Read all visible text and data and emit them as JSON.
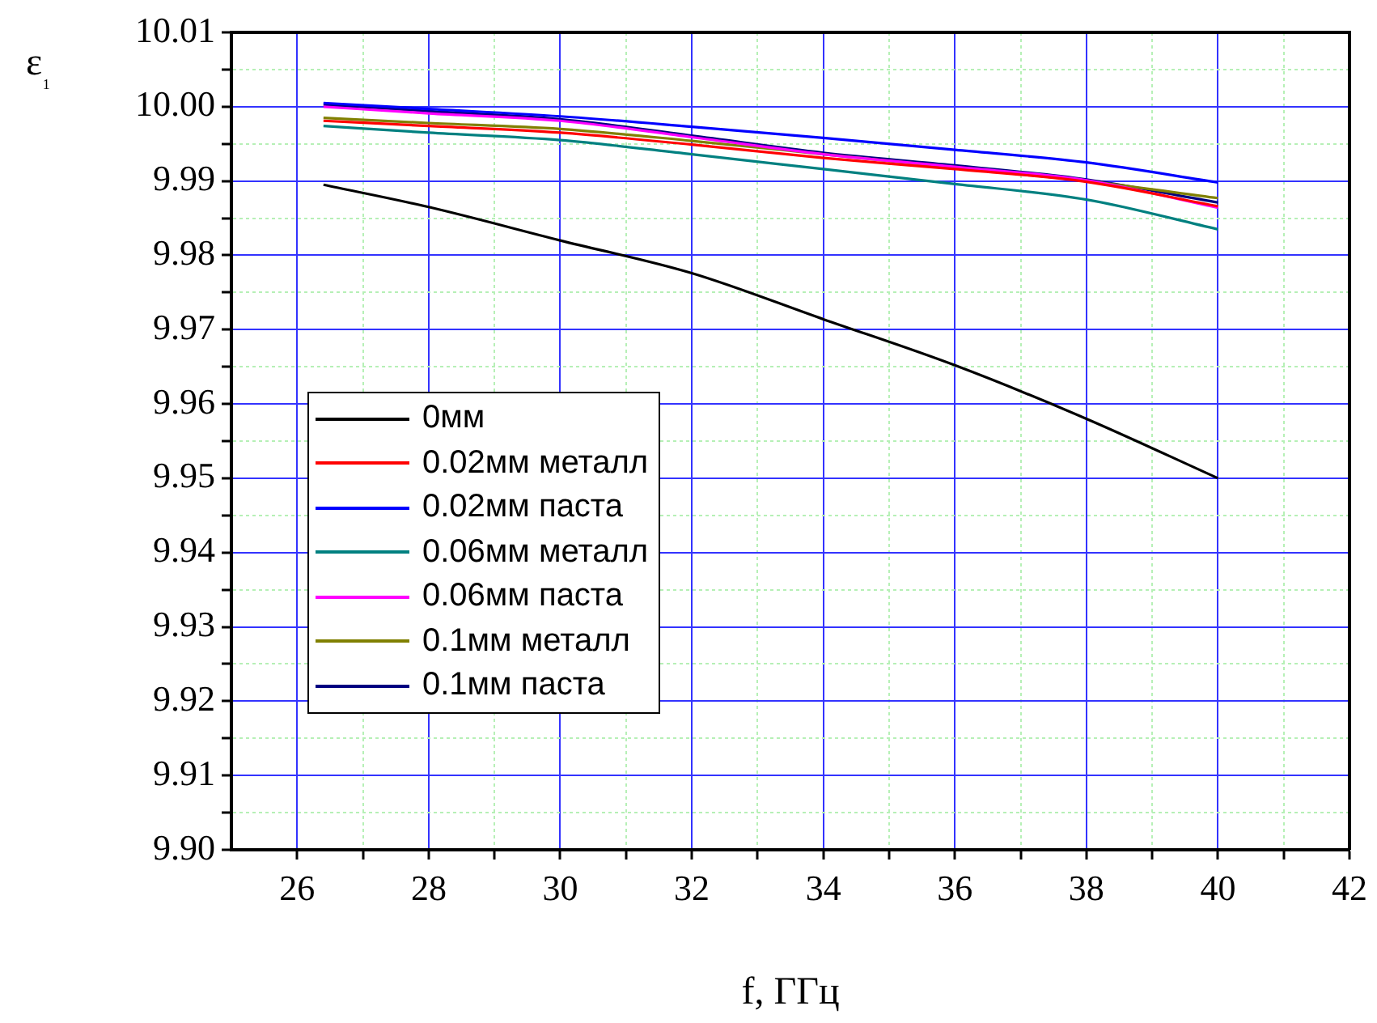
{
  "chart_data": {
    "type": "line",
    "xlabel": "f, ГГц",
    "ylabel": "ε₁",
    "x": [
      26.4,
      28,
      30,
      32,
      34,
      36,
      38,
      40
    ],
    "xlim": [
      25,
      42
    ],
    "xticks": [
      26,
      {
        "value": 27,
        "label": null
      },
      28,
      {
        "value": 29,
        "label": null
      },
      30,
      {
        "value": 31,
        "label": null
      },
      32,
      {
        "value": 33,
        "label": null
      },
      34,
      {
        "value": 35,
        "label": null
      },
      36,
      {
        "value": 37,
        "label": null
      },
      38,
      {
        "value": 39,
        "label": null
      },
      40,
      {
        "value": 41,
        "label": null
      },
      42
    ],
    "ylim": [
      9.9,
      10.01
    ],
    "yticks": [
      {
        "value": 9.9,
        "label": "9.90"
      },
      {
        "value": 9.905,
        "label": null
      },
      9.91,
      {
        "value": 9.915,
        "label": null
      },
      9.92,
      {
        "value": 9.925,
        "label": null
      },
      9.93,
      {
        "value": 9.935,
        "label": null
      },
      9.94,
      {
        "value": 9.945,
        "label": null
      },
      9.95,
      {
        "value": 9.955,
        "label": null
      },
      9.96,
      {
        "value": 9.965,
        "label": null
      },
      9.97,
      {
        "value": 9.975,
        "label": null
      },
      9.98,
      {
        "value": 9.985,
        "label": null
      },
      9.99,
      {
        "value": 9.995,
        "label": null
      },
      {
        "value": 10.0,
        "label": "10.00"
      },
      {
        "value": 10.005,
        "label": null
      },
      10.01
    ],
    "grid": true,
    "legend": "bottom left",
    "marker": "none",
    "line_style": "solid",
    "series": [
      {
        "name": "0мм",
        "color": "#000000",
        "values": [
          9.9895,
          9.9865,
          9.982,
          9.9776,
          9.9714,
          9.9652,
          9.958,
          9.95
        ]
      },
      {
        "name": "0.02мм металл",
        "color": "#ff0000",
        "values": [
          9.9981,
          9.9974,
          9.9965,
          9.9949,
          9.9931,
          9.9916,
          9.9899,
          9.9866
        ]
      },
      {
        "name": "0.02мм паста",
        "color": "#0000ff",
        "values": [
          10.0005,
          9.9997,
          9.9987,
          9.9973,
          9.9958,
          9.9942,
          9.9925,
          9.9898
        ]
      },
      {
        "name": "0.06мм металл",
        "color": "#008080",
        "values": [
          9.9974,
          9.9965,
          9.9955,
          9.9936,
          9.9916,
          9.9896,
          9.9875,
          9.9835
        ]
      },
      {
        "name": "0.06мм паста",
        "color": "#ff00ff",
        "values": [
          10.0,
          9.9991,
          9.9981,
          9.9959,
          9.9936,
          9.9919,
          9.9901,
          9.9864
        ]
      },
      {
        "name": "0.1мм металл",
        "color": "#808000",
        "values": [
          9.9985,
          9.9978,
          9.997,
          9.9954,
          9.9936,
          9.9918,
          9.99,
          9.9877
        ]
      },
      {
        "name": "0.1мм паста",
        "color": "#000080",
        "values": [
          10.0003,
          9.9994,
          9.9983,
          9.9961,
          9.9938,
          9.9921,
          9.9902,
          9.9871
        ]
      }
    ]
  }
}
